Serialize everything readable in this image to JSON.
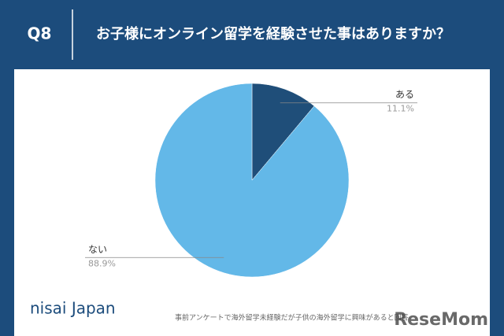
{
  "question_number": "Q8",
  "chart_data": {
    "type": "pie",
    "title": "お子様にオンライン留学を経験させた事はありますか？",
    "categories": [
      "ある",
      "ない"
    ],
    "values": [
      11.1,
      88.9
    ],
    "value_labels": [
      "11.1%",
      "88.9%"
    ],
    "colors": [
      "#1f4e79",
      "#63b8e8"
    ],
    "note": "事前アンケートで海外留学未経験だが子供の海外留学に興味があると回答"
  },
  "brand": "nisai Japan",
  "watermark": "ReseMom"
}
